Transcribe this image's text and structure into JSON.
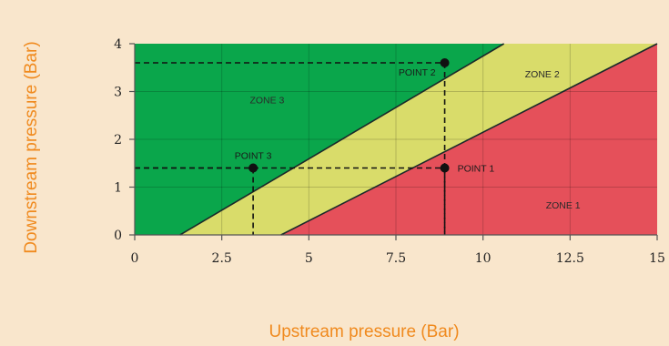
{
  "chart_data": {
    "type": "area",
    "xlabel": "Upstream pressure (Bar)",
    "ylabel": "Downstream pressure (Bar)",
    "xlim": [
      0,
      15
    ],
    "ylim": [
      0,
      4
    ],
    "x_ticks": [
      "0",
      "2.5",
      "5",
      "7.5",
      "10",
      "12.5",
      "15"
    ],
    "y_ticks": [
      "0",
      "1",
      "2",
      "3",
      "4"
    ],
    "grid": true,
    "boundaries": [
      {
        "between": "ZONE 3 / ZONE 2",
        "points": [
          [
            1.3,
            0
          ],
          [
            10.6,
            4
          ]
        ]
      },
      {
        "between": "ZONE 2 / ZONE 1",
        "points": [
          [
            4.2,
            0
          ],
          [
            15,
            4
          ]
        ]
      }
    ],
    "zones": [
      {
        "label": "ZONE 3",
        "color": "#0aa64b",
        "label_x": 3.8,
        "label_y": 2.75
      },
      {
        "label": "ZONE 2",
        "color": "#d9dc6a",
        "label_x": 11.7,
        "label_y": 3.3
      },
      {
        "label": "ZONE 1",
        "color": "#e5505a",
        "label_x": 12.3,
        "label_y": 0.55
      }
    ],
    "points": [
      {
        "label": "POINT 1",
        "x": 8.9,
        "y": 1.4
      },
      {
        "label": "POINT 2",
        "x": 8.9,
        "y": 3.6
      },
      {
        "label": "POINT 3",
        "x": 3.4,
        "y": 1.4
      }
    ],
    "colors": {
      "axis_title": "#f08a1e",
      "background": "#f9e6cc"
    }
  }
}
